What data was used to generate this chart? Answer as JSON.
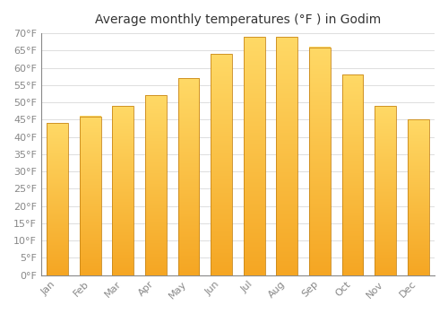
{
  "title": "Average monthly temperatures (°F ) in Godim",
  "months": [
    "Jan",
    "Feb",
    "Mar",
    "Apr",
    "May",
    "Jun",
    "Jul",
    "Aug",
    "Sep",
    "Oct",
    "Nov",
    "Dec"
  ],
  "values": [
    44,
    46,
    49,
    52,
    57,
    64,
    69,
    69,
    66,
    58,
    49,
    45
  ],
  "bar_color_bottom": "#F5A623",
  "bar_color_top": "#FFD966",
  "background_color": "#FFFFFF",
  "grid_color": "#DDDDDD",
  "ylim": [
    0,
    70
  ],
  "yticks": [
    0,
    5,
    10,
    15,
    20,
    25,
    30,
    35,
    40,
    45,
    50,
    55,
    60,
    65,
    70
  ],
  "title_fontsize": 10,
  "tick_fontsize": 8,
  "tick_color": "#888888",
  "spine_color": "#888888",
  "figsize": [
    5.0,
    3.5
  ],
  "dpi": 100
}
